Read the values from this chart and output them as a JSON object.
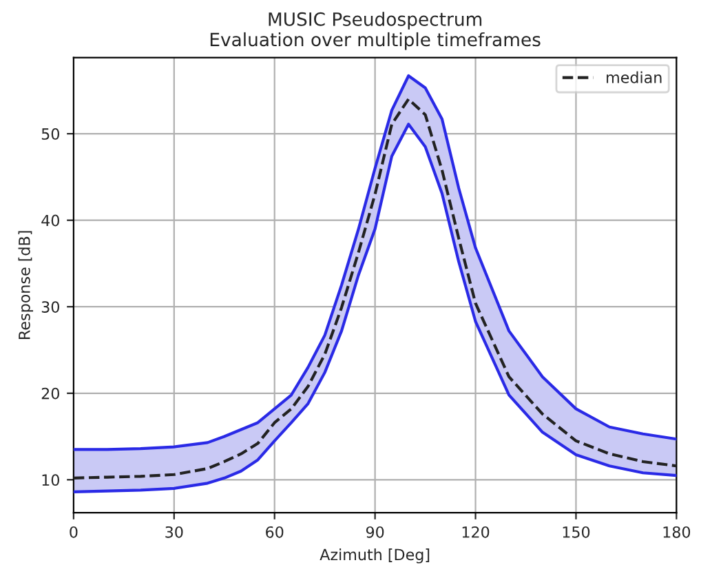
{
  "chart_data": {
    "type": "line",
    "title": "MUSIC Pseudospectrum\nEvaluation over multiple timeframes",
    "xlabel": "Azimuth [Deg]",
    "ylabel": "Response [dB]",
    "x": [
      0,
      10,
      20,
      30,
      40,
      45,
      50,
      55,
      60,
      65,
      70,
      75,
      80,
      85,
      90,
      95,
      100,
      105,
      110,
      115,
      120,
      130,
      140,
      150,
      160,
      170,
      180
    ],
    "series": [
      {
        "name": "median",
        "color": "#222222",
        "line_style": "dashed",
        "values": [
          10.2,
          10.3,
          10.4,
          10.6,
          11.3,
          12.1,
          13.0,
          14.2,
          16.6,
          18.2,
          20.8,
          24.5,
          29.9,
          36.2,
          43.0,
          51.1,
          54.0,
          52.2,
          45.8,
          37.9,
          30.4,
          21.9,
          17.6,
          14.5,
          13.0,
          12.1,
          11.6
        ],
        "lower": [
          8.6,
          8.7,
          8.8,
          9.0,
          9.6,
          10.2,
          11.0,
          12.3,
          14.5,
          16.6,
          18.8,
          22.4,
          27.2,
          33.6,
          39.0,
          47.4,
          51.1,
          48.5,
          43.1,
          35.2,
          28.3,
          19.8,
          15.5,
          12.9,
          11.6,
          10.8,
          10.5
        ],
        "upper": [
          13.5,
          13.5,
          13.6,
          13.8,
          14.3,
          15.0,
          15.8,
          16.6,
          18.2,
          19.8,
          23.0,
          26.7,
          32.5,
          38.9,
          46.0,
          52.7,
          56.7,
          55.3,
          51.7,
          43.7,
          36.8,
          27.2,
          21.9,
          18.2,
          16.1,
          15.3,
          14.7
        ]
      },
      {
        "color": "#2a2ae6",
        "line_style": "solid",
        "values": [
          8.6,
          8.7,
          8.8,
          9.0,
          9.6,
          10.2,
          11.0,
          12.3,
          14.5,
          16.6,
          18.8,
          22.4,
          27.2,
          33.6,
          39.0,
          47.4,
          51.1,
          48.5,
          43.1,
          35.2,
          28.3,
          19.8,
          15.5,
          12.9,
          11.6,
          10.8,
          10.5
        ]
      },
      {
        "color": "#2a2ae6",
        "line_style": "solid",
        "values": [
          13.5,
          13.5,
          13.6,
          13.8,
          14.3,
          15.0,
          15.8,
          16.6,
          18.2,
          19.8,
          23.0,
          26.7,
          32.5,
          38.9,
          46.0,
          52.7,
          56.7,
          55.3,
          51.7,
          43.7,
          36.8,
          27.2,
          21.9,
          18.2,
          16.1,
          15.3,
          14.7
        ]
      }
    ],
    "xlim": [
      0,
      180
    ],
    "xticks": [
      0,
      30,
      60,
      90,
      120,
      150,
      180
    ],
    "ylim": [
      6.2,
      58.8
    ],
    "yticks": [
      10,
      20,
      30,
      40,
      50
    ],
    "grid": true,
    "legend": "top right",
    "marker": "none"
  }
}
